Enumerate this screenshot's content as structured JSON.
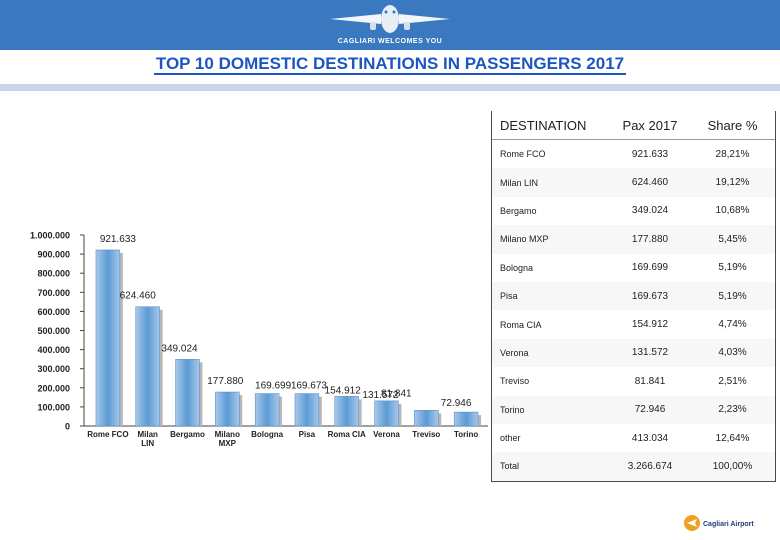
{
  "header": {
    "tagline": "CAGLIARI WELCOMES YOU",
    "title": "TOP 10 DOMESTIC DESTINATIONS IN PASSENGERS 2017"
  },
  "chart_data": {
    "type": "bar",
    "title": "",
    "xlabel": "",
    "ylabel": "",
    "ylim": [
      0,
      1000000
    ],
    "yticks": [
      "0",
      "100.000",
      "200.000",
      "300.000",
      "400.000",
      "500.000",
      "600.000",
      "700.000",
      "800.000",
      "900.000",
      "1.000.000"
    ],
    "categories": [
      "Rome FCO",
      "Milan LIN",
      "Bergamo",
      "Milano MXP",
      "Bologna",
      "Pisa",
      "Roma CIA",
      "Verona",
      "Treviso",
      "Torino"
    ],
    "values": [
      921633,
      624460,
      349024,
      177880,
      169699,
      169673,
      154912,
      131572,
      81841,
      72946
    ],
    "data_labels": [
      "921.633",
      "624.460",
      "349.024",
      "177.880",
      "169.699",
      "169.673",
      "154.912",
      "131.572",
      "81.841",
      "72.946"
    ],
    "colors": {
      "bar": "#5b9bd5",
      "bar_light": "#a9c8ea"
    }
  },
  "table": {
    "headers": [
      "DESTINATION",
      "Pax 2017",
      "Share %"
    ],
    "rows": [
      [
        "Rome FCO",
        "921.633",
        "28,21%"
      ],
      [
        "Milan LIN",
        "624.460",
        "19,12%"
      ],
      [
        "Bergamo",
        "349.024",
        "10,68%"
      ],
      [
        "Milano MXP",
        "177.880",
        "5,45%"
      ],
      [
        "Bologna",
        "169.699",
        "5,19%"
      ],
      [
        "Pisa",
        "169.673",
        "5,19%"
      ],
      [
        "Roma CIA",
        "154.912",
        "4,74%"
      ],
      [
        "Verona",
        "131.572",
        "4,03%"
      ],
      [
        "Treviso",
        "81.841",
        "2,51%"
      ],
      [
        "Torino",
        "72.946",
        "2,23%"
      ],
      [
        "other",
        "413.034",
        "12,64%"
      ],
      [
        "Total",
        "3.266.674",
        "100,00%"
      ]
    ]
  },
  "logo": {
    "text": "Cagliari Airport",
    "icon": "airport-logo-icon"
  },
  "colors": {
    "banner": "#3a78bf",
    "title": "#1c56c2"
  }
}
